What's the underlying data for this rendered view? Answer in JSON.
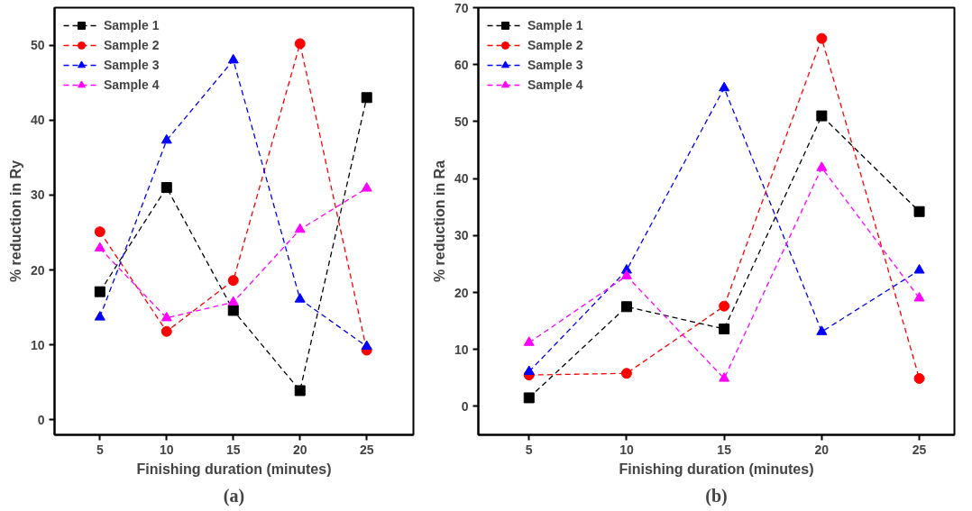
{
  "chart_data": [
    {
      "type": "line",
      "xlabel": "Finishing duration (minutes)",
      "ylabel": "% reduction in Ry",
      "annotations": [
        "(a)"
      ],
      "x": [
        5,
        10,
        15,
        20,
        25
      ],
      "xlim": [
        1.6,
        28.5
      ],
      "xticks": [
        5,
        10,
        15,
        20,
        25
      ],
      "ylim": [
        -2,
        55
      ],
      "yticks": [
        0,
        10,
        20,
        30,
        40,
        50
      ],
      "grid": false,
      "legend": "top left",
      "line_style": "dashed",
      "series": [
        {
          "name": "Sample 1",
          "color": "#000000",
          "marker": "square",
          "values": [
            17.1,
            31.0,
            14.6,
            3.9,
            43.0
          ]
        },
        {
          "name": "Sample 2",
          "color": "#ff0000",
          "marker": "circle",
          "values": [
            25.1,
            11.8,
            18.6,
            50.2,
            9.3
          ]
        },
        {
          "name": "Sample 3",
          "color": "#0000ff",
          "marker": "triangle",
          "values": [
            13.7,
            37.3,
            48.0,
            16.1,
            9.8
          ]
        },
        {
          "name": "Sample 4",
          "color": "#ff00ff",
          "marker": "triangle",
          "values": [
            22.9,
            13.6,
            15.7,
            25.4,
            30.9
          ]
        }
      ]
    },
    {
      "type": "line",
      "xlabel": "Finishing duration (minutes)",
      "ylabel": "% reduction in Ra",
      "annotations": [
        "(b)"
      ],
      "x": [
        5,
        10,
        15,
        20,
        25
      ],
      "xlim": [
        2.4,
        26.8
      ],
      "xticks": [
        5,
        10,
        15,
        20,
        25
      ],
      "ylim": [
        -5,
        70
      ],
      "yticks": [
        0,
        10,
        20,
        30,
        40,
        50,
        60,
        70
      ],
      "grid": false,
      "legend": "top left",
      "line_style": "dashed",
      "series": [
        {
          "name": "Sample 1",
          "color": "#000000",
          "marker": "square",
          "values": [
            1.5,
            17.5,
            13.6,
            51.0,
            34.2
          ]
        },
        {
          "name": "Sample 2",
          "color": "#ff0000",
          "marker": "circle",
          "values": [
            5.5,
            5.8,
            17.6,
            64.6,
            4.9
          ]
        },
        {
          "name": "Sample 3",
          "color": "#0000ff",
          "marker": "triangle",
          "values": [
            6.1,
            23.9,
            55.9,
            13.1,
            23.9
          ]
        },
        {
          "name": "Sample 4",
          "color": "#ff00ff",
          "marker": "triangle",
          "values": [
            11.2,
            22.9,
            4.9,
            41.9,
            19.0
          ]
        }
      ]
    }
  ]
}
